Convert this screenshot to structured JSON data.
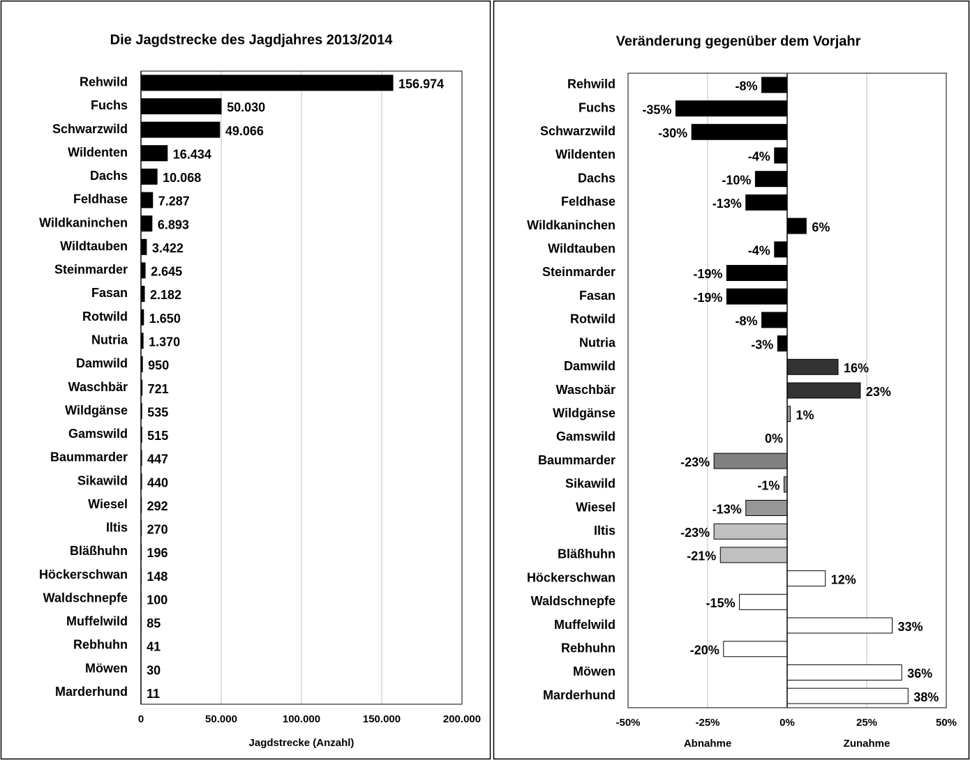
{
  "chart_data": [
    {
      "type": "barh",
      "title": "Die Jagdstrecke des Jagdjahres 2013/2014",
      "xlabel": "Jagdstrecke (Anzahl)",
      "categories": [
        "Rehwild",
        "Fuchs",
        "Schwarzwild",
        "Wildenten",
        "Dachs",
        "Feldhase",
        "Wildkaninchen",
        "Wildtauben",
        "Steinmarder",
        "Fasan",
        "Rotwild",
        "Nutria",
        "Damwild",
        "Waschbär",
        "Wildgänse",
        "Gamswild",
        "Baummarder",
        "Sikawild",
        "Wiesel",
        "Iltis",
        "Bläßhuhn",
        "Höckerschwan",
        "Waldschnepfe",
        "Muffelwild",
        "Rebhuhn",
        "Möwen",
        "Marderhund"
      ],
      "values": [
        156974,
        50030,
        49066,
        16434,
        10068,
        7287,
        6893,
        3422,
        2645,
        2182,
        1650,
        1370,
        950,
        721,
        535,
        515,
        447,
        440,
        292,
        270,
        196,
        148,
        100,
        85,
        41,
        30,
        11
      ],
      "value_labels": [
        "156.974",
        "50.030",
        "49.066",
        "16.434",
        "10.068",
        "7.287",
        "6.893",
        "3.422",
        "2.645",
        "2.182",
        "1.650",
        "1.370",
        "950",
        "721",
        "535",
        "515",
        "447",
        "440",
        "292",
        "270",
        "196",
        "148",
        "100",
        "85",
        "41",
        "30",
        "11"
      ],
      "color": "#000000",
      "xlim": [
        0,
        200000
      ],
      "xticks": [
        0,
        {
          "value": 50000,
          "label": "50.000"
        },
        {
          "value": 100000,
          "label": "100.000"
        },
        {
          "value": 150000,
          "label": "150.000"
        },
        {
          "value": 200000,
          "label": "200.000"
        }
      ],
      "grid": true
    },
    {
      "type": "barh",
      "title": "Veränderung gegenüber dem Vorjahr",
      "xlabel_left": "Abnahme",
      "xlabel_right": "Zunahme",
      "categories": [
        "Rehwild",
        "Fuchs",
        "Schwarzwild",
        "Wildenten",
        "Dachs",
        "Feldhase",
        "Wildkaninchen",
        "Wildtauben",
        "Steinmarder",
        "Fasan",
        "Rotwild",
        "Nutria",
        "Damwild",
        "Waschbär",
        "Wildgänse",
        "Gamswild",
        "Baummarder",
        "Sikawild",
        "Wiesel",
        "Iltis",
        "Bläßhuhn",
        "Höckerschwan",
        "Waldschnepfe",
        "Muffelwild",
        "Rebhuhn",
        "Möwen",
        "Marderhund"
      ],
      "values": [
        -8,
        -35,
        -30,
        -4,
        -10,
        -13,
        6,
        -4,
        -19,
        -19,
        -8,
        -3,
        16,
        23,
        1,
        0,
        -23,
        -1,
        -13,
        -23,
        -21,
        12,
        -15,
        33,
        -20,
        36,
        38
      ],
      "value_labels": [
        "-8%",
        "-35%",
        "-30%",
        "-4%",
        "-10%",
        "-13%",
        "6%",
        "-4%",
        "-19%",
        "-19%",
        "-8%",
        "-3%",
        "16%",
        "23%",
        "1%",
        "0%",
        "-23%",
        "-1%",
        "-13%",
        "-23%",
        "-21%",
        "12%",
        "-15%",
        "33%",
        "-20%",
        "36%",
        "38%"
      ],
      "colors": [
        "#000000",
        "#000000",
        "#000000",
        "#000000",
        "#000000",
        "#000000",
        "#000000",
        "#000000",
        "#000000",
        "#000000",
        "#000000",
        "#000000",
        "#333333",
        "#333333",
        "#999999",
        "#999999",
        "#808080",
        "#969696",
        "#969696",
        "#c0c0c0",
        "#c0c0c0",
        "#ffffff",
        "#ffffff",
        "#ffffff",
        "#ffffff",
        "#ffffff",
        "#ffffff"
      ],
      "xlim": [
        -50,
        50
      ],
      "xticks": [
        {
          "value": -50,
          "label": "-50%"
        },
        {
          "value": -25,
          "label": "-25%"
        },
        {
          "value": 0,
          "label": "0%"
        },
        {
          "value": 25,
          "label": "25%"
        },
        {
          "value": 50,
          "label": "50%"
        }
      ],
      "grid": true
    }
  ]
}
